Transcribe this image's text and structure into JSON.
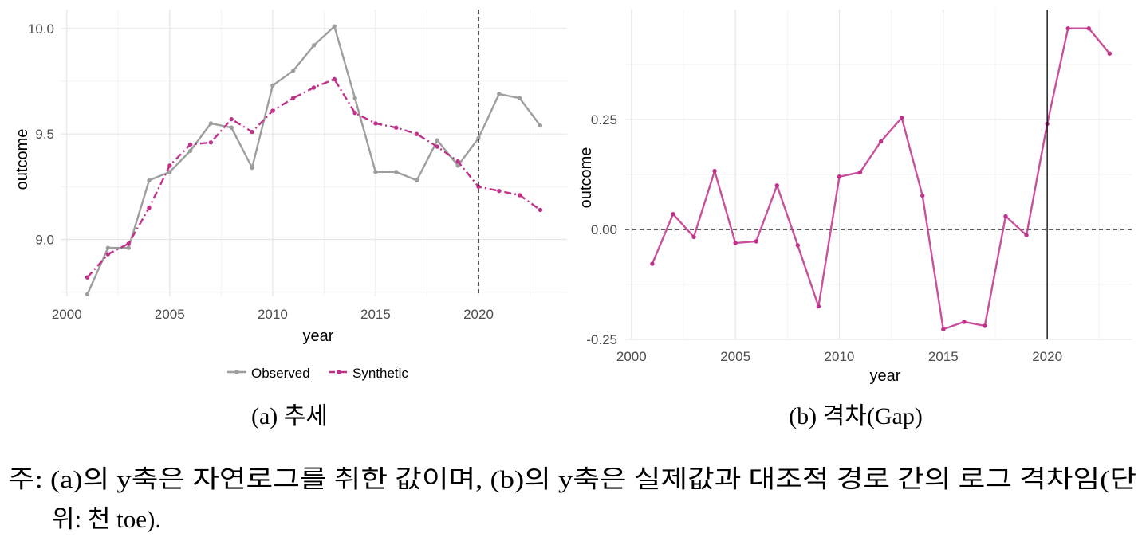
{
  "chart_data": [
    {
      "type": "line",
      "xlabel": "year",
      "ylabel": "outcome",
      "xlim": [
        1999.7,
        2024.3
      ],
      "ylim": [
        8.73,
        10.09
      ],
      "x_ticks": [
        2000,
        2005,
        2010,
        2015,
        2020
      ],
      "y_ticks": [
        9.0,
        9.5,
        10.0
      ],
      "y_tick_labels": [
        "9.0",
        "9.5",
        "10.0"
      ],
      "grid": true,
      "vline": {
        "x": 2020,
        "style": "dashed"
      },
      "legend": {
        "position": "bottom",
        "items": [
          {
            "label": "Observed",
            "color": "#9e9e9e",
            "style": "solid"
          },
          {
            "label": "Synthetic",
            "color": "#c0328a",
            "style": "dashdot"
          }
        ]
      },
      "x": [
        2001,
        2002,
        2003,
        2004,
        2005,
        2006,
        2007,
        2008,
        2009,
        2010,
        2011,
        2012,
        2013,
        2014,
        2015,
        2016,
        2017,
        2018,
        2019,
        2020,
        2021,
        2022,
        2023
      ],
      "series": [
        {
          "name": "Observed",
          "color": "#9e9e9e",
          "values": [
            8.74,
            8.96,
            8.96,
            9.28,
            9.32,
            9.42,
            9.55,
            9.53,
            9.34,
            9.73,
            9.8,
            9.92,
            10.01,
            9.67,
            9.32,
            9.32,
            9.28,
            9.47,
            9.35,
            9.48,
            9.69,
            9.67,
            9.54
          ]
        },
        {
          "name": "Synthetic",
          "color": "#c0328a",
          "values": [
            8.82,
            8.93,
            8.98,
            9.15,
            9.35,
            9.45,
            9.46,
            9.57,
            9.51,
            9.61,
            9.67,
            9.72,
            9.76,
            9.6,
            9.55,
            9.53,
            9.5,
            9.44,
            9.37,
            9.25,
            9.23,
            9.21,
            9.14
          ]
        }
      ],
      "caption": "(a) 추세"
    },
    {
      "type": "line",
      "xlabel": "year",
      "ylabel": "outcome",
      "xlim": [
        1999.7,
        2024.1
      ],
      "ylim": [
        -0.25,
        0.5
      ],
      "x_ticks": [
        2000,
        2005,
        2010,
        2015,
        2020
      ],
      "y_ticks": [
        -0.25,
        0.0,
        0.25
      ],
      "y_tick_labels": [
        "-0.25",
        "0.00",
        "0.25"
      ],
      "grid": true,
      "vline": {
        "x": 2020,
        "style": "solid"
      },
      "hline": {
        "y": 0,
        "style": "dashed"
      },
      "x": [
        2001,
        2002,
        2003,
        2004,
        2005,
        2006,
        2007,
        2008,
        2009,
        2010,
        2011,
        2012,
        2013,
        2014,
        2015,
        2016,
        2017,
        2018,
        2019,
        2020,
        2021,
        2022,
        2023
      ],
      "series": [
        {
          "color": "#c0328a",
          "values": [
            -0.078,
            0.035,
            -0.017,
            0.133,
            -0.031,
            -0.027,
            0.1,
            -0.036,
            -0.175,
            0.12,
            0.13,
            0.2,
            0.254,
            0.077,
            -0.227,
            -0.21,
            -0.219,
            0.03,
            -0.013,
            0.24,
            0.457,
            0.457,
            0.4
          ]
        }
      ],
      "caption": "(b) 격차(Gap)"
    }
  ],
  "note": {
    "line1": "주: (a)의 y축은 자연로그를 취한 값이며, (b)의 y축은 실제값과 대조적 경로 간의 로그 격차임(단",
    "line2": "위: 천 toe)."
  }
}
